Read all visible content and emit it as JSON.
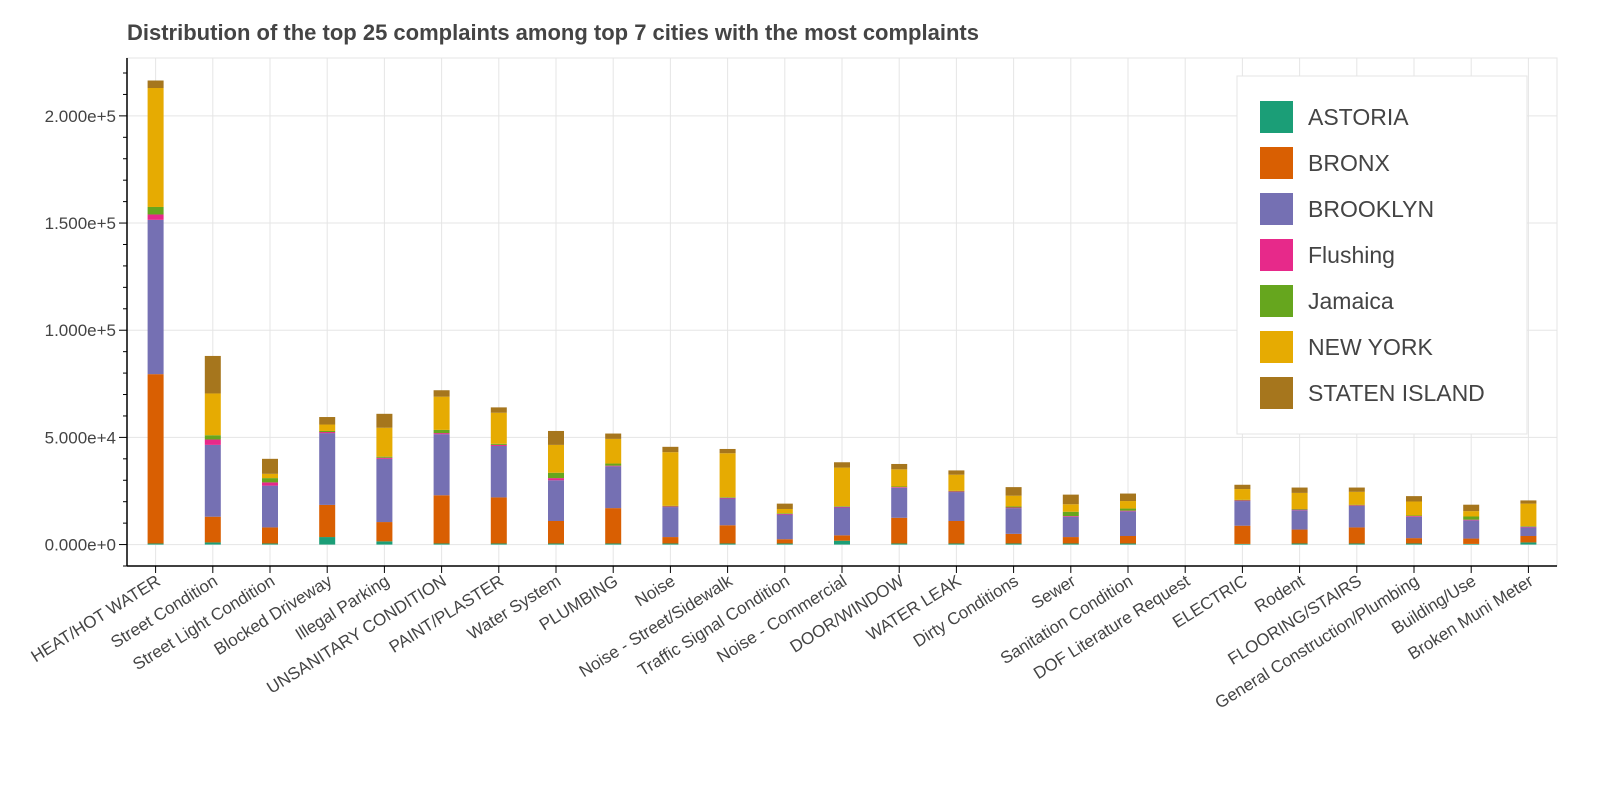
{
  "chart_data": {
    "type": "bar",
    "stacked": true,
    "title": "Distribution of the top 25 complaints among top 7 cities with the most complaints",
    "xlabel": "",
    "ylabel": "",
    "ylim": [
      -10000,
      227000
    ],
    "yticks": [
      0,
      50000,
      100000,
      150000,
      200000
    ],
    "ytick_labels": [
      "0.000e+0",
      "5.000e+4",
      "1.000e+5",
      "1.500e+5",
      "2.000e+5"
    ],
    "grid": true,
    "legend_position": "top-right",
    "categories": [
      "HEAT/HOT WATER",
      "Street Condition",
      "Street Light Condition",
      "Blocked Driveway",
      "Illegal Parking",
      "UNSANITARY CONDITION",
      "PAINT/PLASTER",
      "Water System",
      "PLUMBING",
      "Noise",
      "Noise - Street/Sidewalk",
      "Traffic Signal Condition",
      "Noise - Commercial",
      "DOOR/WINDOW",
      "WATER LEAK",
      "Dirty Conditions",
      "Sewer",
      "Sanitation Condition",
      "DOF Literature Request",
      "ELECTRIC",
      "Rodent",
      "FLOORING/STAIRS",
      "General Construction/Plumbing",
      "Building/Use",
      "Broken Muni Meter"
    ],
    "series": [
      {
        "name": "ASTORIA",
        "color": "#1b9e77",
        "values": [
          500,
          1000,
          500,
          3500,
          1500,
          500,
          500,
          500,
          500,
          500,
          500,
          500,
          1800,
          500,
          500,
          500,
          500,
          500,
          0,
          300,
          500,
          500,
          500,
          300,
          1000
        ]
      },
      {
        "name": "BRONX",
        "color": "#d95f02",
        "values": [
          79000,
          12000,
          7500,
          15000,
          9000,
          22500,
          21500,
          10500,
          16500,
          3000,
          8500,
          2000,
          2500,
          12000,
          10500,
          4500,
          3000,
          3500,
          0,
          8500,
          6500,
          7500,
          2500,
          2500,
          3000
        ]
      },
      {
        "name": "BROOKLYN",
        "color": "#7570b3",
        "values": [
          72000,
          33500,
          19500,
          33500,
          29500,
          28500,
          24000,
          19000,
          19500,
          14000,
          12500,
          11500,
          13000,
          14000,
          13500,
          12000,
          9500,
          11500,
          0,
          11500,
          9000,
          10000,
          10000,
          8500,
          4000
        ]
      },
      {
        "name": "Flushing",
        "color": "#e7298a",
        "values": [
          2500,
          2500,
          1500,
          500,
          500,
          500,
          500,
          1000,
          300,
          300,
          300,
          300,
          300,
          300,
          300,
          300,
          300,
          300,
          0,
          300,
          300,
          300,
          300,
          300,
          300
        ]
      },
      {
        "name": "Jamaica",
        "color": "#66a61e",
        "values": [
          3500,
          2000,
          2000,
          500,
          500,
          1500,
          500,
          2500,
          1000,
          300,
          300,
          300,
          300,
          300,
          300,
          500,
          2000,
          1000,
          0,
          300,
          300,
          300,
          300,
          1500,
          300
        ]
      },
      {
        "name": "NEW YORK",
        "color": "#e6ab02",
        "values": [
          55500,
          19500,
          2000,
          3000,
          13500,
          15500,
          14500,
          13000,
          11500,
          25000,
          20500,
          2000,
          18000,
          8000,
          7500,
          5000,
          3500,
          3500,
          0,
          5000,
          7500,
          6000,
          6500,
          2500,
          10500
        ]
      },
      {
        "name": "STATEN ISLAND",
        "color": "#a6761d",
        "values": [
          3500,
          17500,
          7000,
          3500,
          6500,
          3000,
          2500,
          6500,
          2500,
          2500,
          2000,
          2500,
          2500,
          2500,
          2000,
          4000,
          4500,
          3500,
          0,
          2000,
          2500,
          2000,
          2500,
          3000,
          1500
        ]
      }
    ]
  }
}
